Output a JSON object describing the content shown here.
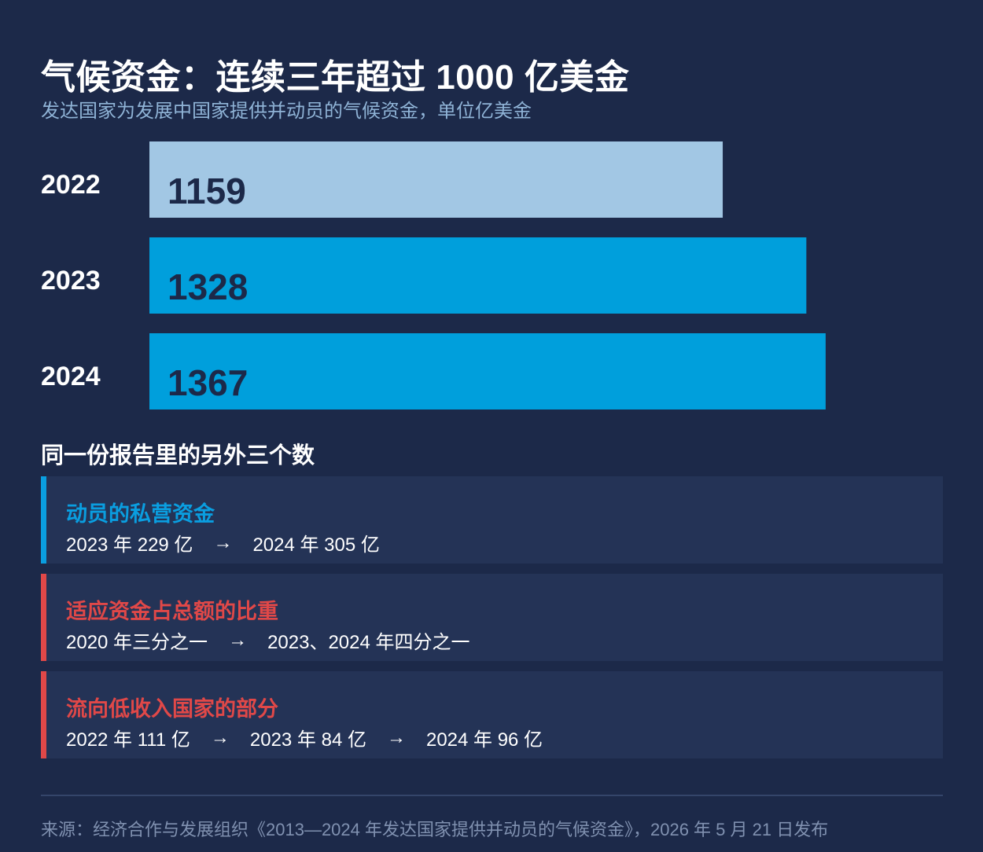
{
  "title": "气候资金：连续三年超过 1000 亿美金",
  "subtitle": "发达国家为发展中国家提供并动员的气候资金，单位亿美金",
  "chart_data": {
    "type": "bar",
    "orientation": "horizontal",
    "title": "气候资金：连续三年超过 1000 亿美金",
    "subtitle": "发达国家为发展中国家提供并动员的气候资金，单位亿美金",
    "categories": [
      "2022",
      "2023",
      "2024"
    ],
    "values": [
      1159,
      1328,
      1367
    ],
    "data_labels": [
      "1159",
      "1328",
      "1367"
    ],
    "bar_colors": [
      "#a2c7e4",
      "#009fdc",
      "#009fdc"
    ],
    "xlim": [
      0,
      1550
    ],
    "grid": false,
    "legend": "none"
  },
  "section_title": "同一份报告里的另外三个数",
  "cards": [
    {
      "label": "动员的私营资金",
      "accent": "#0a9ee0",
      "values": [
        "2023 年 229 亿",
        "2024 年 305 亿"
      ]
    },
    {
      "label": "适应资金占总额的比重",
      "accent": "#e04848",
      "values": [
        "2020 年三分之一",
        "2023、2024 年四分之一"
      ]
    },
    {
      "label": "流向低收入国家的部分",
      "accent": "#e04848",
      "values": [
        "2022 年 111 亿",
        "2023 年 84 亿",
        "2024 年 96 亿"
      ]
    }
  ],
  "arrow": "→",
  "source": "来源：经济合作与发展组织《2013—2024 年发达国家提供并动员的气候资金》，2026 年 5 月 21 日发布"
}
